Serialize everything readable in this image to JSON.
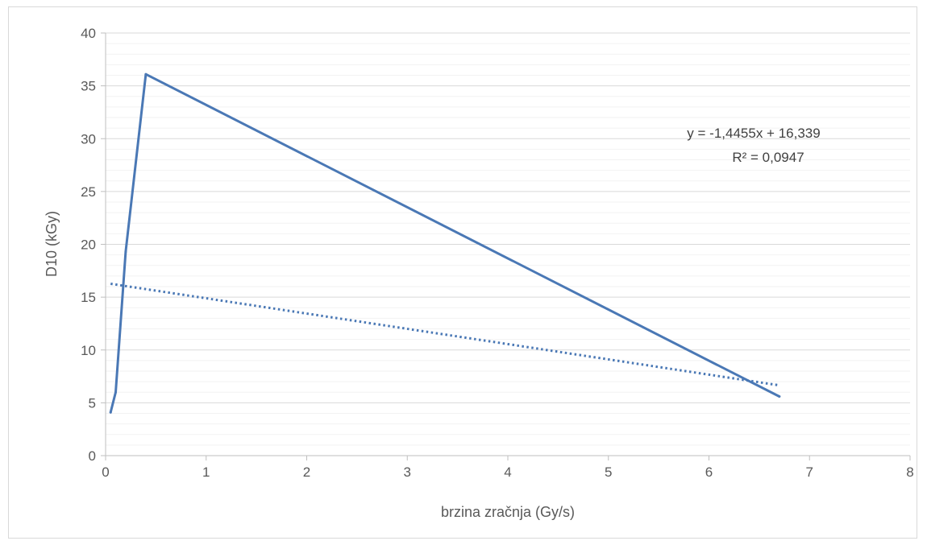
{
  "chart_data": {
    "type": "line",
    "title": "",
    "xlabel": "brzina zračnja (Gy/s)",
    "ylabel": "D10 (kGy)",
    "xlim": [
      0,
      8
    ],
    "ylim": [
      0,
      40
    ],
    "x_ticks": [
      0,
      1,
      2,
      3,
      4,
      5,
      6,
      7,
      8
    ],
    "y_ticks": [
      0,
      5,
      10,
      15,
      20,
      25,
      30,
      35,
      40
    ],
    "x_tick_labels": [
      "0",
      "1",
      "2",
      "3",
      "4",
      "5",
      "6",
      "7",
      "8"
    ],
    "y_tick_labels": [
      "0",
      "5",
      "10",
      "15",
      "20",
      "25",
      "30",
      "35",
      "40"
    ],
    "grid": true,
    "legend": "none",
    "series": [
      {
        "color": "#4a78b5",
        "points": [
          {
            "x": 0.05,
            "y": 4.1
          },
          {
            "x": 0.1,
            "y": 6.0
          },
          {
            "x": 0.2,
            "y": 19.3
          },
          {
            "x": 0.4,
            "y": 36.1
          },
          {
            "x": 6.7,
            "y": 5.6
          }
        ]
      }
    ],
    "trendline": {
      "style": "dotted",
      "color": "#4a78b5",
      "slope": -1.4455,
      "intercept": 16.339,
      "x_range": [
        0.05,
        6.7
      ],
      "equation_label": "y = -1,4455x + 16,339",
      "r2_label": "R² = 0,0947"
    }
  }
}
